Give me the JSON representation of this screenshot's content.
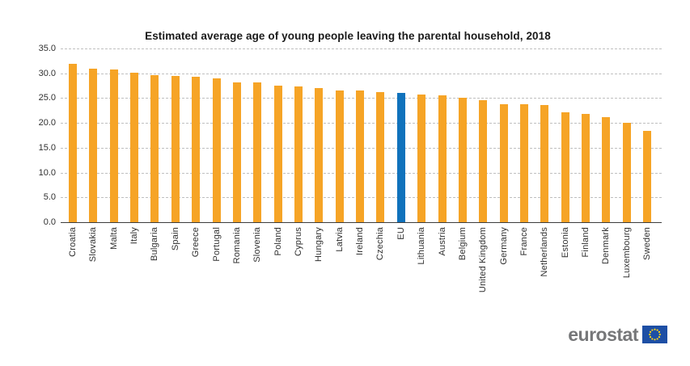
{
  "chart_data": {
    "type": "bar",
    "title": "Estimated average age of young people leaving the parental household, 2018",
    "categories": [
      "Croatia",
      "Slovakia",
      "Malta",
      "Italy",
      "Bulgaria",
      "Spain",
      "Greece",
      "Portugal",
      "Romania",
      "Slovenia",
      "Poland",
      "Cyprus",
      "Hungary",
      "Latvia",
      "Ireland",
      "Czechia",
      "EU",
      "Lithuania",
      "Austria",
      "Belgium",
      "United Kingdom",
      "Germany",
      "France",
      "Netherlands",
      "Estonia",
      "Finland",
      "Denmark",
      "Luxembourg",
      "Sweden"
    ],
    "values": [
      31.9,
      30.9,
      30.7,
      30.1,
      29.6,
      29.5,
      29.3,
      29.0,
      28.2,
      28.1,
      27.5,
      27.3,
      27.0,
      26.6,
      26.5,
      26.2,
      26.0,
      25.8,
      25.6,
      25.1,
      24.6,
      23.7,
      23.7,
      23.6,
      22.2,
      21.9,
      21.1,
      20.0,
      18.4
    ],
    "highlight_category": "EU",
    "xlabel": "",
    "ylabel": "",
    "ylim": [
      0,
      35
    ],
    "ytick_labels": [
      "0.0",
      "5.0",
      "10.0",
      "15.0",
      "20.0",
      "25.0",
      "30.0",
      "35.0"
    ],
    "grid": "horizontal-dashed",
    "legend": "none",
    "colors": {
      "bar": "#F6A426",
      "highlight": "#1072BC",
      "gridline": "#BFBFBF",
      "axis": "#3C3C3C"
    }
  },
  "branding": {
    "logo_text": "eurostat",
    "flag_field_color": "#1D4FA5",
    "flag_star_color": "#FFD617"
  }
}
